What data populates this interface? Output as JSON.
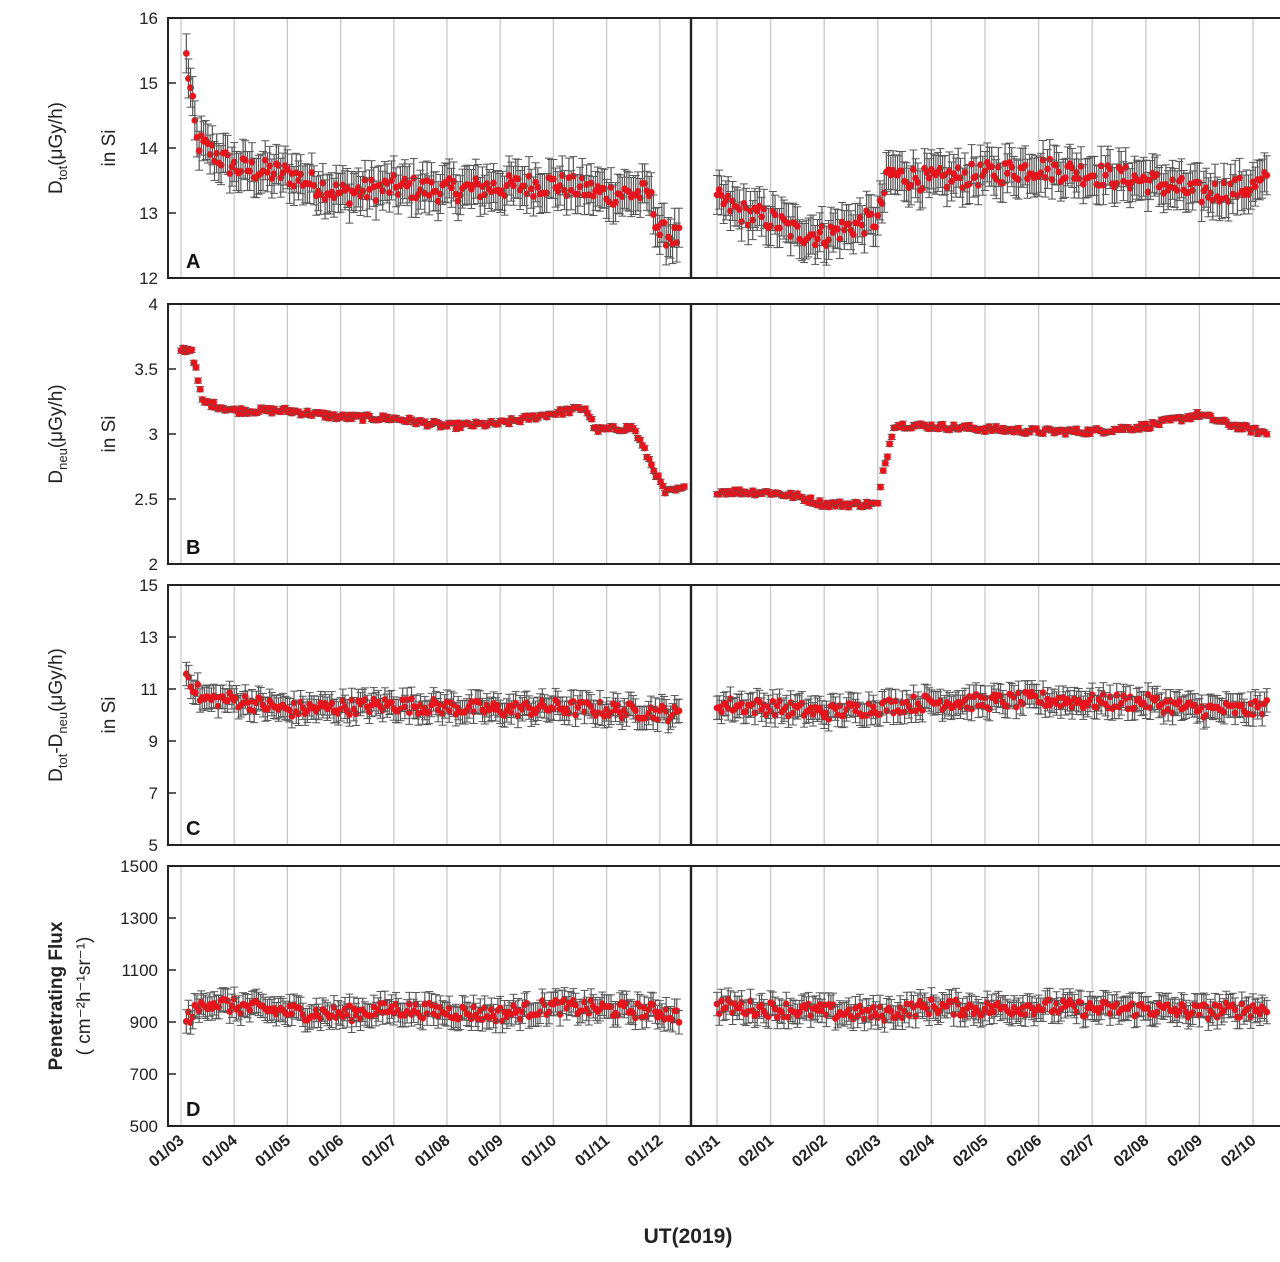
{
  "chart_data": {
    "type": "scatter",
    "xlabel": "UT(2019)",
    "segments": [
      {
        "x_ticks": [
          "01/03",
          "01/04",
          "01/05",
          "01/06",
          "01/07",
          "01/08",
          "01/09",
          "01/10",
          "01/11",
          "01/12"
        ]
      },
      {
        "x_ticks": [
          "01/31",
          "02/01",
          "02/02",
          "02/03",
          "02/04",
          "02/05",
          "02/06",
          "02/07",
          "02/08",
          "02/09",
          "02/10"
        ]
      }
    ],
    "panels": [
      {
        "label": "A",
        "ylabel_main": "D",
        "ylabel_sub": "tot",
        "ylabel_unit": "(μGy/h)",
        "ylabel_line2": "in Si",
        "ylim": [
          12,
          16
        ],
        "yticks": [
          "12",
          "13",
          "14",
          "15",
          "16"
        ],
        "series": [
          {
            "segment": 0,
            "points": [
              [
                0.1,
                15.4
              ],
              [
                0.3,
                14.1
              ],
              [
                1.0,
                13.7
              ],
              [
                2.0,
                13.6
              ],
              [
                3.0,
                13.3
              ],
              [
                4.0,
                13.4
              ],
              [
                5.0,
                13.35
              ],
              [
                6.0,
                13.4
              ],
              [
                7.0,
                13.45
              ],
              [
                8.0,
                13.3
              ],
              [
                8.8,
                13.3
              ],
              [
                9.0,
                12.7
              ],
              [
                9.4,
                12.6
              ]
            ]
          },
          {
            "segment": 1,
            "points": [
              [
                0.0,
                13.2
              ],
              [
                0.5,
                13.0
              ],
              [
                1.0,
                12.9
              ],
              [
                1.5,
                12.7
              ],
              [
                2.0,
                12.65
              ],
              [
                2.5,
                12.8
              ],
              [
                3.0,
                12.9
              ],
              [
                3.2,
                13.6
              ],
              [
                4.0,
                13.5
              ],
              [
                5.0,
                13.6
              ],
              [
                6.0,
                13.7
              ],
              [
                7.0,
                13.6
              ],
              [
                8.0,
                13.5
              ],
              [
                9.0,
                13.3
              ],
              [
                10.0,
                13.4
              ],
              [
                10.3,
                13.5
              ]
            ]
          }
        ]
      },
      {
        "label": "B",
        "ylabel_main": "D",
        "ylabel_sub": "neu",
        "ylabel_unit": "(μGy/h)",
        "ylabel_line2": "in Si",
        "ylim": [
          2,
          4
        ],
        "yticks": [
          "2",
          "2.5",
          "3",
          "3.5",
          "4"
        ],
        "series": [
          {
            "segment": 0,
            "points": [
              [
                0.0,
                3.65
              ],
              [
                0.2,
                3.65
              ],
              [
                0.4,
                3.25
              ],
              [
                1.0,
                3.18
              ],
              [
                2.0,
                3.18
              ],
              [
                3.0,
                3.13
              ],
              [
                4.0,
                3.12
              ],
              [
                5.0,
                3.06
              ],
              [
                6.0,
                3.08
              ],
              [
                7.0,
                3.16
              ],
              [
                7.6,
                3.2
              ],
              [
                7.8,
                3.03
              ],
              [
                8.5,
                3.05
              ],
              [
                8.8,
                2.8
              ],
              [
                9.1,
                2.55
              ],
              [
                9.5,
                2.58
              ]
            ]
          },
          {
            "segment": 1,
            "points": [
              [
                0.0,
                2.56
              ],
              [
                1.0,
                2.55
              ],
              [
                1.5,
                2.52
              ],
              [
                2.0,
                2.46
              ],
              [
                3.0,
                2.46
              ],
              [
                3.1,
                2.7
              ],
              [
                3.3,
                3.07
              ],
              [
                4.0,
                3.06
              ],
              [
                5.0,
                3.04
              ],
              [
                6.0,
                3.02
              ],
              [
                7.0,
                3.02
              ],
              [
                8.0,
                3.06
              ],
              [
                9.0,
                3.15
              ],
              [
                9.5,
                3.08
              ],
              [
                10.3,
                3.0
              ]
            ]
          }
        ]
      },
      {
        "label": "C",
        "ylabel_main": "D",
        "ylabel_sub": "tot",
        "ylabel_dash": "-D",
        "ylabel_sub2": "neu",
        "ylabel_unit": "(μGy/h)",
        "ylabel_line2": "in Si",
        "ylim": [
          5,
          15
        ],
        "yticks": [
          "5",
          "7",
          "9",
          "11",
          "13",
          "15"
        ],
        "series": [
          {
            "segment": 0,
            "points": [
              [
                0.1,
                11.6
              ],
              [
                0.4,
                10.6
              ],
              [
                1.0,
                10.6
              ],
              [
                2.0,
                10.2
              ],
              [
                3.0,
                10.3
              ],
              [
                4.0,
                10.4
              ],
              [
                5.0,
                10.3
              ],
              [
                6.0,
                10.2
              ],
              [
                7.0,
                10.3
              ],
              [
                8.0,
                10.2
              ],
              [
                9.0,
                10.1
              ],
              [
                9.4,
                10.0
              ]
            ]
          },
          {
            "segment": 1,
            "points": [
              [
                0.0,
                10.4
              ],
              [
                1.0,
                10.3
              ],
              [
                2.0,
                10.1
              ],
              [
                3.0,
                10.3
              ],
              [
                4.0,
                10.5
              ],
              [
                5.0,
                10.5
              ],
              [
                6.0,
                10.6
              ],
              [
                7.0,
                10.5
              ],
              [
                8.0,
                10.5
              ],
              [
                9.0,
                10.2
              ],
              [
                10.0,
                10.2
              ],
              [
                10.3,
                10.4
              ]
            ]
          }
        ]
      },
      {
        "label": "D",
        "ylabel_main": "Penetrating Flux",
        "ylabel_line2": "( cm⁻²h⁻¹sr⁻¹)",
        "ylim": [
          500,
          1500
        ],
        "yticks": [
          "500",
          "700",
          "900",
          "1100",
          "1300",
          "1500"
        ],
        "series": [
          {
            "segment": 0,
            "points": [
              [
                0.1,
                910
              ],
              [
                0.5,
                980
              ],
              [
                1.0,
                960
              ],
              [
                2.0,
                940
              ],
              [
                3.0,
                930
              ],
              [
                4.0,
                950
              ],
              [
                5.0,
                940
              ],
              [
                6.0,
                930
              ],
              [
                7.0,
                960
              ],
              [
                8.0,
                950
              ],
              [
                9.0,
                940
              ],
              [
                9.4,
                920
              ]
            ]
          },
          {
            "segment": 1,
            "points": [
              [
                0.0,
                960
              ],
              [
                1.0,
                950
              ],
              [
                2.0,
                940
              ],
              [
                3.0,
                930
              ],
              [
                4.0,
                960
              ],
              [
                5.0,
                950
              ],
              [
                6.0,
                960
              ],
              [
                7.0,
                950
              ],
              [
                8.0,
                950
              ],
              [
                9.0,
                940
              ],
              [
                10.0,
                950
              ],
              [
                10.3,
                945
              ]
            ]
          }
        ]
      }
    ]
  },
  "colors": {
    "marker": "#e8141c",
    "errorbar": "#555555",
    "grid": "#c8c8c8",
    "axis": "#222222"
  }
}
